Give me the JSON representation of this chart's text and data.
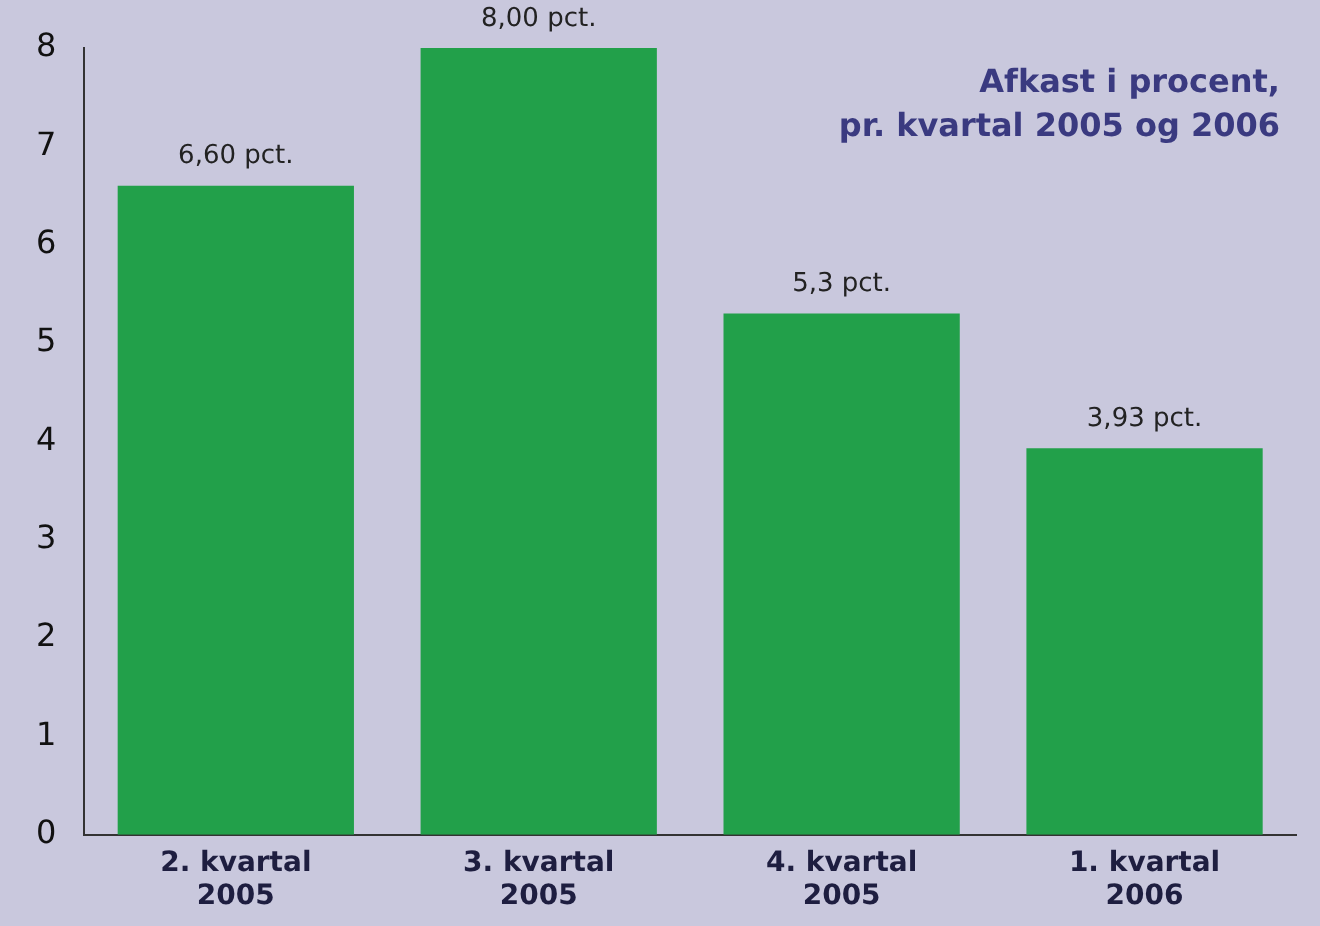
{
  "chart_data": {
    "type": "bar",
    "title": "Afkast i procent,\npr. kvartal 2005 og 2006",
    "categories": [
      "2. kvartal 2005",
      "3. kvartal 2005",
      "4. kvartal 2005",
      "1. kvartal 2006"
    ],
    "values": [
      6.6,
      8.0,
      5.3,
      3.93
    ],
    "value_labels": [
      "6,60 pct.",
      "8,00 pct.",
      "5,3 pct.",
      "3,93 pct."
    ],
    "color": "#22a04a",
    "ylim": [
      0,
      8
    ],
    "yticks": [
      0,
      1,
      2,
      3,
      4,
      5,
      6,
      7,
      8
    ],
    "grid": false,
    "legend": false
  }
}
